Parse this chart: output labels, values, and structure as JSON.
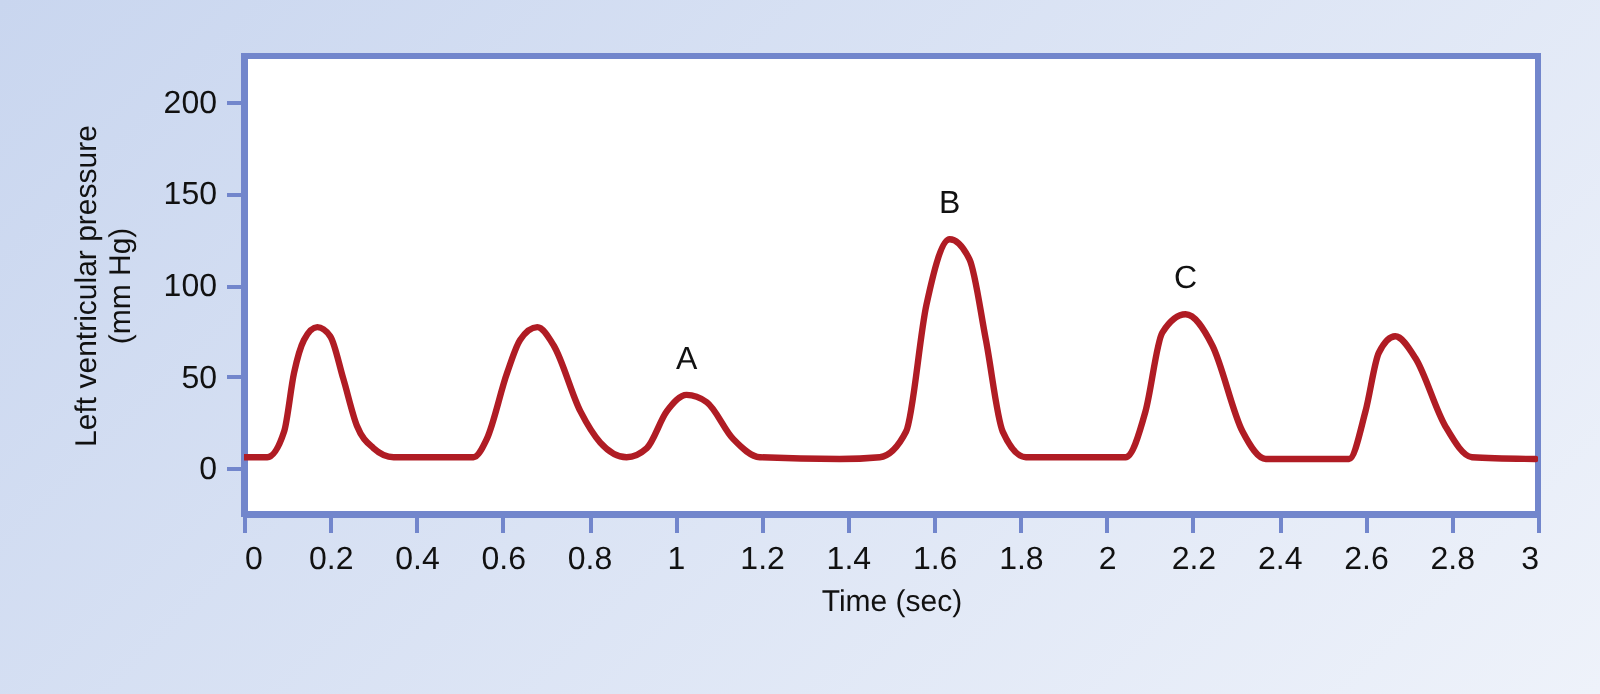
{
  "chart_data": {
    "type": "line",
    "xlabel": "Time (sec)",
    "ylabel": "Left ventricular pressure\n(mm Hg)",
    "x": [
      0,
      0.054,
      0.093,
      0.116,
      0.139,
      0.17,
      0.2,
      0.23,
      0.262,
      0.3,
      0.347,
      0.532,
      0.563,
      0.61,
      0.64,
      0.68,
      0.718,
      0.78,
      0.826,
      0.887,
      0.934,
      0.98,
      1.026,
      1.073,
      1.134,
      1.196,
      1.381,
      1.474,
      1.535,
      1.582,
      1.636,
      1.682,
      1.72,
      1.759,
      1.813,
      2.044,
      2.09,
      2.129,
      2.183,
      2.245,
      2.315,
      2.369,
      2.562,
      2.6,
      2.631,
      2.669,
      2.716,
      2.785,
      2.847,
      2.994
    ],
    "series": [
      {
        "color": "#b01c24",
        "values": [
          6,
          6,
          20,
          52,
          70,
          77,
          72,
          49,
          23,
          11,
          6,
          6,
          16,
          52,
          70,
          77,
          67,
          31,
          14,
          6,
          11,
          31,
          40,
          36,
          16,
          6,
          5,
          6,
          20,
          89,
          125,
          114,
          70,
          20,
          6,
          6,
          31,
          74,
          84,
          67,
          20,
          5,
          5,
          31,
          63,
          72,
          60,
          23,
          6,
          5
        ]
      }
    ],
    "annotations": [
      {
        "text": "A",
        "x": 1.026,
        "y": 40
      },
      {
        "text": "B",
        "x": 1.636,
        "y": 125
      },
      {
        "text": "C",
        "x": 2.183,
        "y": 84
      }
    ],
    "xlim": [
      0,
      3
    ],
    "xticks": [
      0,
      0.2,
      0.4,
      0.6,
      0.8,
      1,
      1.2,
      1.4,
      1.6,
      1.8,
      2,
      2.2,
      2.4,
      2.6,
      2.8,
      3
    ],
    "ylim": [
      -25,
      225
    ],
    "yticks": [
      0,
      50,
      100,
      150,
      200
    ],
    "grid": false,
    "marker": "none",
    "line_style": "solid"
  }
}
